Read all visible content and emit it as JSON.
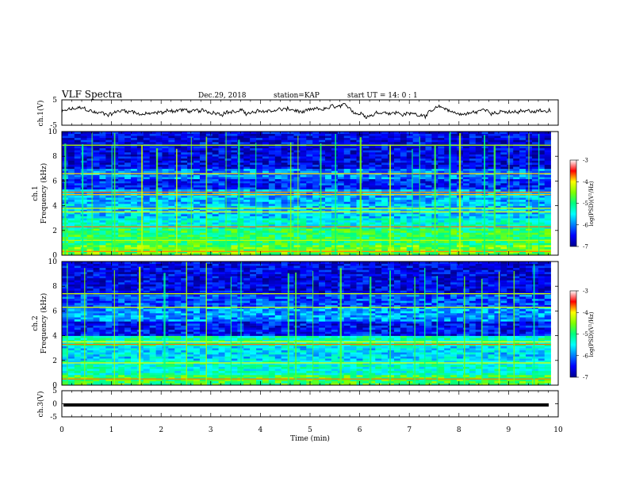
{
  "header": {
    "title": "VLF Spectra",
    "date": "Dec.29, 2018",
    "station": "station=KAP",
    "start": "start  UT =   14: 0  : 1"
  },
  "chart_data": [
    {
      "type": "line",
      "panel": "ch1-waveform",
      "ylabel": "ch.1(V)",
      "ylim": [
        -5,
        5
      ],
      "yticks": [
        "5",
        "-5"
      ],
      "xlim": [
        0,
        10
      ],
      "line_color": "#000000",
      "note": "noisy waveform fluctuating roughly between -2 and 3 V"
    },
    {
      "type": "heatmap",
      "panel": "ch1-spectrogram",
      "ylabel": "ch.1\nFrequency (kHz)",
      "ylim": [
        0,
        10
      ],
      "yticks": [
        "0",
        "2",
        "4",
        "6",
        "8",
        "10"
      ],
      "xlim": [
        0,
        10
      ],
      "colorbar": {
        "label": "log(PSD)(V²/Hz)",
        "range": [
          -7,
          -3
        ],
        "ticks": [
          "-3",
          "-4",
          "-5",
          "-6",
          "-7"
        ]
      },
      "bands_khz": [
        {
          "from": 0.0,
          "to": 0.8,
          "level": -4.6
        },
        {
          "from": 0.8,
          "to": 2.2,
          "level": -4.9
        },
        {
          "from": 2.2,
          "to": 3.0,
          "level": -5.4
        },
        {
          "from": 3.0,
          "to": 4.2,
          "level": -5.7
        },
        {
          "from": 4.2,
          "to": 5.4,
          "level": -5.8
        },
        {
          "from": 5.4,
          "to": 6.2,
          "level": -6.4
        },
        {
          "from": 6.2,
          "to": 7.0,
          "level": -6.0
        },
        {
          "from": 7.0,
          "to": 10.0,
          "level": -6.6
        }
      ],
      "lines_khz": [
        0.3,
        1.2,
        2.3,
        3.5,
        3.8,
        4.9,
        5.1,
        6.6,
        8.9
      ],
      "vertical_bursts_min": [
        0.05,
        0.4,
        0.6,
        1.0,
        1.05,
        1.6,
        1.9,
        2.3,
        2.6,
        2.9,
        3.3,
        3.55,
        3.9,
        4.6,
        4.75,
        5.2,
        5.5,
        6.0,
        6.6,
        7.05,
        7.2,
        7.5,
        7.8,
        8.0,
        8.5,
        8.7,
        9.0,
        9.4,
        9.6
      ]
    },
    {
      "type": "heatmap",
      "panel": "ch2-spectrogram",
      "ylabel": "ch.2\nFrequency (kHz)",
      "ylim": [
        0,
        10
      ],
      "yticks": [
        "0",
        "2",
        "4",
        "6",
        "8",
        "10"
      ],
      "xlim": [
        0,
        10
      ],
      "colorbar": {
        "label": "log(PSD)(V²/Hz)",
        "range": [
          -7,
          -3
        ],
        "ticks": [
          "-3",
          "-4",
          "-5",
          "-6",
          "-7"
        ]
      },
      "bands_khz": [
        {
          "from": 0.0,
          "to": 0.8,
          "level": -4.8
        },
        {
          "from": 0.8,
          "to": 2.0,
          "level": -5.3
        },
        {
          "from": 2.0,
          "to": 3.2,
          "level": -5.6
        },
        {
          "from": 3.2,
          "to": 4.0,
          "level": -5.2
        },
        {
          "from": 4.0,
          "to": 5.2,
          "level": -6.5
        },
        {
          "from": 5.2,
          "to": 6.4,
          "level": -5.9
        },
        {
          "from": 6.4,
          "to": 7.4,
          "level": -6.2
        },
        {
          "from": 7.4,
          "to": 10.0,
          "level": -6.6
        }
      ],
      "lines_khz": [
        0.5,
        1.8,
        3.3,
        3.5,
        6.3,
        7.4
      ],
      "vertical_bursts_min": [
        0.1,
        0.45,
        1.05,
        1.55,
        2.05,
        2.5,
        2.9,
        3.4,
        3.6,
        4.55,
        4.7,
        5.05,
        5.6,
        6.2,
        6.6,
        7.1,
        7.3,
        7.55,
        8.1,
        8.45,
        8.8,
        9.1,
        9.5
      ]
    },
    {
      "type": "line",
      "panel": "ch3-waveform",
      "ylabel": "ch.3(V)",
      "ylim": [
        -5,
        5
      ],
      "yticks": [
        "5",
        "0",
        "-5"
      ],
      "xlim": [
        0,
        10
      ],
      "y": [
        -1.5
      ],
      "line_color": "#000000"
    }
  ],
  "xaxis": {
    "label": "Time  (min)",
    "range": [
      0,
      10
    ],
    "ticks": [
      "0",
      "1",
      "2",
      "3",
      "4",
      "5",
      "6",
      "7",
      "8",
      "9",
      "10"
    ]
  }
}
